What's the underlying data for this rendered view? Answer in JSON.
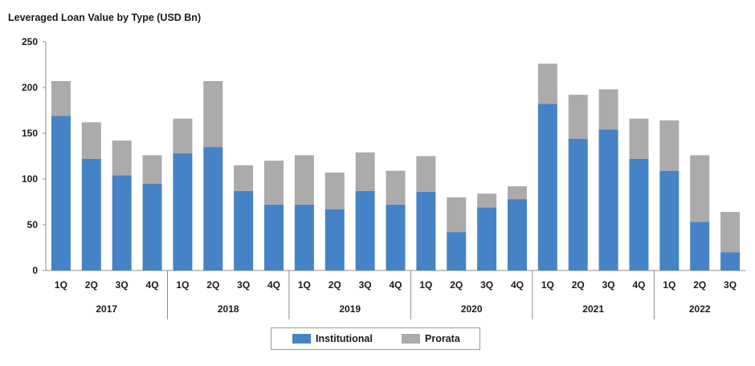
{
  "chart_data": {
    "type": "bar",
    "stacked": true,
    "title": "Leveraged Loan Value by Type (USD Bn)",
    "quarters": [
      "1Q",
      "2Q",
      "3Q",
      "4Q",
      "1Q",
      "2Q",
      "3Q",
      "4Q",
      "1Q",
      "2Q",
      "3Q",
      "4Q",
      "1Q",
      "2Q",
      "3Q",
      "4Q",
      "1Q",
      "2Q",
      "3Q",
      "4Q",
      "1Q",
      "2Q",
      "3Q"
    ],
    "years": [
      {
        "label": "2017",
        "count": 4
      },
      {
        "label": "2018",
        "count": 4
      },
      {
        "label": "2019",
        "count": 4
      },
      {
        "label": "2020",
        "count": 4
      },
      {
        "label": "2021",
        "count": 4
      },
      {
        "label": "2022",
        "count": 3
      }
    ],
    "series": [
      {
        "name": "Institutional",
        "color": "#4683c6",
        "values": [
          169,
          122,
          104,
          95,
          128,
          135,
          87,
          72,
          72,
          67,
          87,
          72,
          86,
          42,
          69,
          78,
          182,
          144,
          154,
          122,
          109,
          53,
          20
        ]
      },
      {
        "name": "Prorata",
        "color": "#ababab",
        "values": [
          38,
          40,
          38,
          31,
          38,
          72,
          28,
          48,
          54,
          40,
          42,
          37,
          39,
          38,
          15,
          14,
          44,
          48,
          44,
          44,
          55,
          73,
          44
        ]
      }
    ],
    "ylim": [
      0,
      250
    ],
    "yticks": [
      0,
      50,
      100,
      150,
      200,
      250
    ],
    "legend_position": "bottom",
    "grid": false
  }
}
